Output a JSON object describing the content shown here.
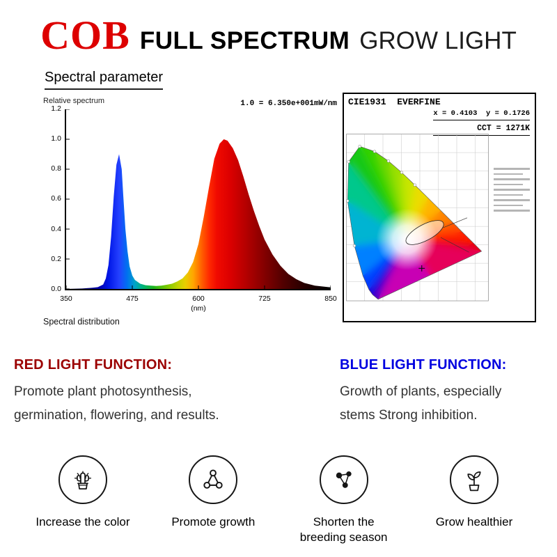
{
  "header": {
    "brand": "COB",
    "brand_color": "#dd0000",
    "title_bold": "FULL SPECTRUM",
    "title_light": "GROW LIGHT"
  },
  "section": {
    "title": "Spectral parameter"
  },
  "spectral_chart": {
    "y_axis_label": "Relative spectrum",
    "scale_note": "1.0 = 6.350e+001mW/nm",
    "y_ticks": [
      "1.2",
      "1.0",
      "0.8",
      "0.6",
      "0.4",
      "0.2",
      "0.0"
    ],
    "x_ticks": [
      "350",
      "475",
      "600",
      "725",
      "850"
    ],
    "x_unit": "(nm)",
    "caption": "Spectral distribution"
  },
  "cie_panel": {
    "title": "CIE1931  EVERFINE",
    "reading": "x = 0.4103  y = 0.1726",
    "cct": "CCT = 1271K"
  },
  "chart_data": [
    {
      "type": "area",
      "title": "Spectral distribution",
      "xlabel": "(nm)",
      "ylabel": "Relative spectrum",
      "xlim": [
        350,
        850
      ],
      "ylim": [
        0,
        1.2
      ],
      "grid": false,
      "scale_note": "1.0 = 6.350e+001mW/nm",
      "x": [
        350,
        380,
        400,
        410,
        420,
        425,
        430,
        435,
        440,
        445,
        450,
        455,
        458,
        462,
        466,
        470,
        475,
        480,
        490,
        500,
        510,
        520,
        530,
        540,
        550,
        560,
        570,
        580,
        590,
        600,
        610,
        620,
        630,
        640,
        648,
        655,
        665,
        675,
        685,
        695,
        705,
        715,
        725,
        740,
        755,
        770,
        785,
        800,
        820,
        850
      ],
      "y": [
        0,
        0.003,
        0.008,
        0.012,
        0.03,
        0.07,
        0.16,
        0.35,
        0.62,
        0.83,
        0.9,
        0.8,
        0.62,
        0.4,
        0.25,
        0.15,
        0.09,
        0.06,
        0.035,
        0.025,
        0.022,
        0.02,
        0.022,
        0.028,
        0.035,
        0.05,
        0.07,
        0.11,
        0.18,
        0.3,
        0.48,
        0.68,
        0.87,
        0.97,
        1.0,
        0.99,
        0.94,
        0.86,
        0.75,
        0.63,
        0.52,
        0.42,
        0.33,
        0.23,
        0.155,
        0.1,
        0.065,
        0.04,
        0.022,
        0.01
      ],
      "peaks": [
        {
          "wavelength": 450,
          "value": 0.9,
          "color": "blue"
        },
        {
          "wavelength": 650,
          "value": 1.0,
          "color": "red"
        }
      ]
    },
    {
      "type": "scatter",
      "title": "CIE1931 EVERFINE",
      "xlabel": "x",
      "ylabel": "y",
      "xlim": [
        0,
        0.8
      ],
      "ylim": [
        0,
        0.9
      ],
      "point": {
        "x": 0.4103,
        "y": 0.1726
      },
      "cct": "CCT = 1271K"
    }
  ],
  "functions": {
    "red": {
      "title": "RED LIGHT FUNCTION:",
      "color": "#9b0000",
      "lines": [
        "Promote plant photosynthesis,",
        "germination, flowering, and results."
      ]
    },
    "blue": {
      "title": "BLUE LIGHT FUNCTION:",
      "color": "#0000e0",
      "lines": [
        "Growth of plants, especially",
        "stems Strong inhibition."
      ]
    }
  },
  "features": [
    {
      "icon": "cactus-icon",
      "label": "Increase the color"
    },
    {
      "icon": "molecule-outline-icon",
      "label": "Promote growth"
    },
    {
      "icon": "molecule-filled-icon",
      "label": "Shorten the breeding season",
      "label_lines": [
        "Shorten the",
        "breeding season"
      ]
    },
    {
      "icon": "sprout-icon",
      "label": "Grow healthier"
    }
  ]
}
